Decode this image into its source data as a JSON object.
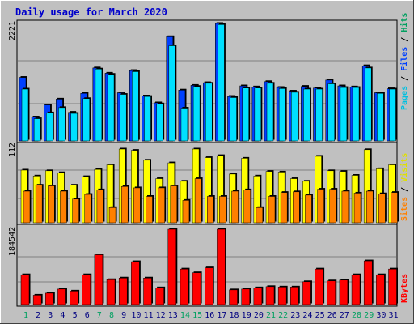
{
  "title": "Daily usage for March 2020",
  "colors": {
    "background": "#c0c0c0",
    "title": "#0000cc",
    "pages": "#00e0ff",
    "files": "#0040ff",
    "hits": "#00a060",
    "visits": "#ffff00",
    "sites": "#ff8000",
    "kbytes": "#ff0000",
    "weekend_label": "#00a060",
    "weekday_label": "#0000cc"
  },
  "panels": {
    "top": {
      "max_label": "2221",
      "legend": [
        "Pages",
        "Files",
        "Hits"
      ]
    },
    "middle": {
      "max_label": "112",
      "legend": [
        "Sites",
        "Visits"
      ]
    },
    "bottom": {
      "max_label": "184542",
      "legend": [
        "KBytes"
      ]
    }
  },
  "chart_data": [
    {
      "type": "bar",
      "title": "Daily usage for March 2020",
      "categories": [
        "1",
        "2",
        "3",
        "4",
        "5",
        "6",
        "7",
        "8",
        "9",
        "10",
        "11",
        "12",
        "13",
        "14",
        "15",
        "16",
        "17",
        "18",
        "19",
        "20",
        "21",
        "22",
        "23",
        "24",
        "25",
        "26",
        "27",
        "28",
        "29",
        "30",
        "31"
      ],
      "weekend_days": [
        "1",
        "7",
        "8",
        "14",
        "15",
        "21",
        "22",
        "28",
        "29"
      ],
      "ylim": [
        0,
        2221
      ],
      "series": [
        {
          "name": "Hits",
          "values": [
            1200,
            450,
            680,
            790,
            540,
            900,
            1380,
            1280,
            910,
            1330,
            850,
            720,
            1970,
            960,
            1050,
            1100,
            2221,
            840,
            1040,
            1020,
            1120,
            1010,
            940,
            1030,
            1000,
            1150,
            1040,
            1020,
            1420,
            910,
            985
          ]
        },
        {
          "name": "Files",
          "values": [
            1200,
            450,
            680,
            790,
            540,
            900,
            1380,
            1280,
            910,
            1330,
            850,
            720,
            1970,
            960,
            1050,
            1100,
            2221,
            840,
            1040,
            1020,
            1120,
            1010,
            940,
            1030,
            1000,
            1150,
            1040,
            1020,
            1420,
            910,
            985
          ]
        },
        {
          "name": "Pages",
          "values": [
            980,
            420,
            530,
            630,
            520,
            800,
            1360,
            1260,
            880,
            1310,
            840,
            700,
            1800,
            620,
            1030,
            1090,
            2200,
            820,
            1000,
            1000,
            1090,
            990,
            920,
            980,
            980,
            1080,
            1010,
            1010,
            1380,
            900,
            980
          ]
        }
      ]
    },
    {
      "type": "bar",
      "categories": [
        "1",
        "2",
        "3",
        "4",
        "5",
        "6",
        "7",
        "8",
        "9",
        "10",
        "11",
        "12",
        "13",
        "14",
        "15",
        "16",
        "17",
        "18",
        "19",
        "20",
        "21",
        "22",
        "23",
        "24",
        "25",
        "26",
        "27",
        "28",
        "29",
        "30",
        "31"
      ],
      "ylim": [
        0,
        112
      ],
      "series": [
        {
          "name": "Visits",
          "values": [
            80,
            71,
            79,
            76,
            57,
            70,
            81,
            88,
            112,
            110,
            95,
            67,
            91,
            63,
            112,
            99,
            102,
            74,
            98,
            71,
            78,
            77,
            67,
            63,
            101,
            79,
            78,
            72,
            111,
            82,
            88
          ]
        },
        {
          "name": "Sites",
          "values": [
            48,
            57,
            56,
            48,
            36,
            43,
            50,
            23,
            55,
            53,
            40,
            53,
            56,
            34,
            67,
            40,
            40,
            48,
            50,
            23,
            40,
            46,
            47,
            42,
            51,
            51,
            48,
            45,
            48,
            44,
            46
          ]
        }
      ]
    },
    {
      "type": "bar",
      "categories": [
        "1",
        "2",
        "3",
        "4",
        "5",
        "6",
        "7",
        "8",
        "9",
        "10",
        "11",
        "12",
        "13",
        "14",
        "15",
        "16",
        "17",
        "18",
        "19",
        "20",
        "21",
        "22",
        "23",
        "24",
        "25",
        "26",
        "27",
        "28",
        "29",
        "30",
        "31"
      ],
      "ylim": [
        0,
        184542
      ],
      "series": [
        {
          "name": "KBytes",
          "values": [
            73000,
            23000,
            28000,
            38000,
            33000,
            73000,
            122000,
            61000,
            65000,
            105000,
            65000,
            41000,
            184542,
            87000,
            78000,
            90000,
            184542,
            36000,
            38000,
            41000,
            44000,
            43000,
            43000,
            56000,
            87000,
            58000,
            60000,
            73000,
            107000,
            73000,
            87000
          ]
        }
      ]
    }
  ]
}
